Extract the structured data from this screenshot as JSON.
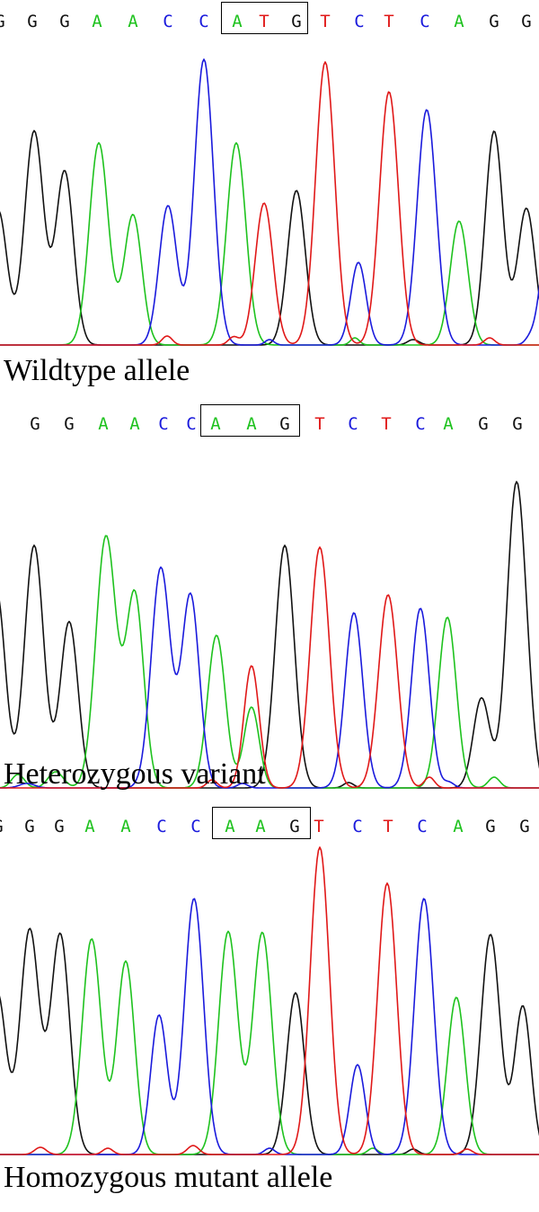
{
  "colors": {
    "A": "#1ec21e",
    "C": "#1a1adc",
    "G": "#111111",
    "T": "#e01818"
  },
  "panels": [
    {
      "id": "wildtype",
      "caption": "Wildtype allele",
      "sequence": [
        "G",
        "G",
        "G",
        "A",
        "A",
        "C",
        "C",
        "A",
        "T",
        "G",
        "T",
        "C",
        "T",
        "C",
        "A",
        "G",
        "G"
      ],
      "boxed": [
        7,
        9
      ]
    },
    {
      "id": "heterozygous",
      "caption": "Heterozygous variant",
      "sequence": [
        "G",
        "G",
        "A",
        "A",
        "C",
        "C",
        "A",
        "A",
        "G",
        "T",
        "C",
        "T",
        "C",
        "A",
        "G",
        "G"
      ],
      "boxed": [
        6,
        8
      ]
    },
    {
      "id": "homozygous",
      "caption": "Homozygous mutant allele",
      "sequence": [
        "G",
        "G",
        "G",
        "A",
        "A",
        "C",
        "C",
        "A",
        "A",
        "G",
        "T",
        "C",
        "T",
        "C",
        "A",
        "G",
        "G"
      ],
      "boxed": [
        7,
        9
      ]
    }
  ]
}
